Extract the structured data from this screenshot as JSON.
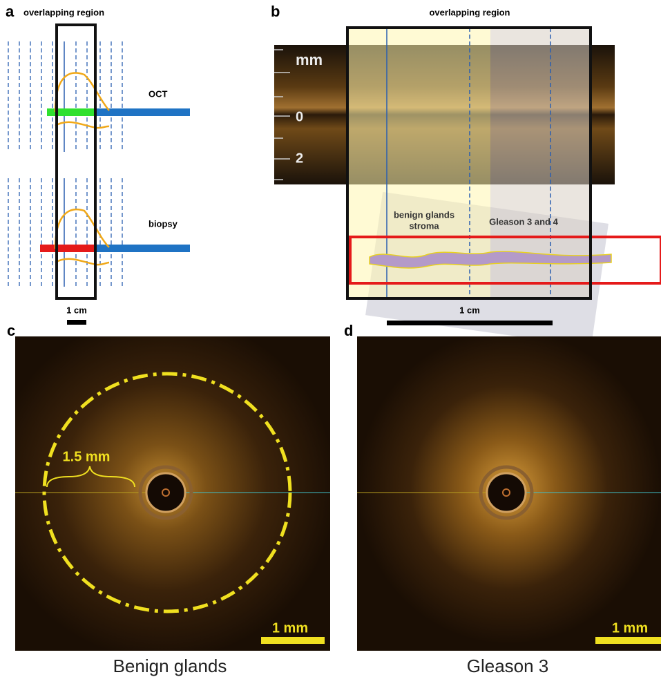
{
  "panels": {
    "a": {
      "label": "a",
      "title": "overlapping region",
      "top_track": "OCT",
      "bottom_track": "biopsy",
      "scale": "1 cm"
    },
    "b": {
      "label": "b",
      "title": "overlapping region",
      "unit": "mm",
      "depth_ticks": [
        "0",
        "2"
      ],
      "region_1": [
        "benign glands",
        "stroma"
      ],
      "region_2": "Gleason 3 and 4",
      "scale": "1 cm"
    },
    "c": {
      "label": "c",
      "radius": "1.5 mm",
      "scale": "1 mm",
      "caption": "Benign glands"
    },
    "d": {
      "label": "d",
      "scale": "1 mm",
      "caption": "Gleason 3"
    }
  }
}
